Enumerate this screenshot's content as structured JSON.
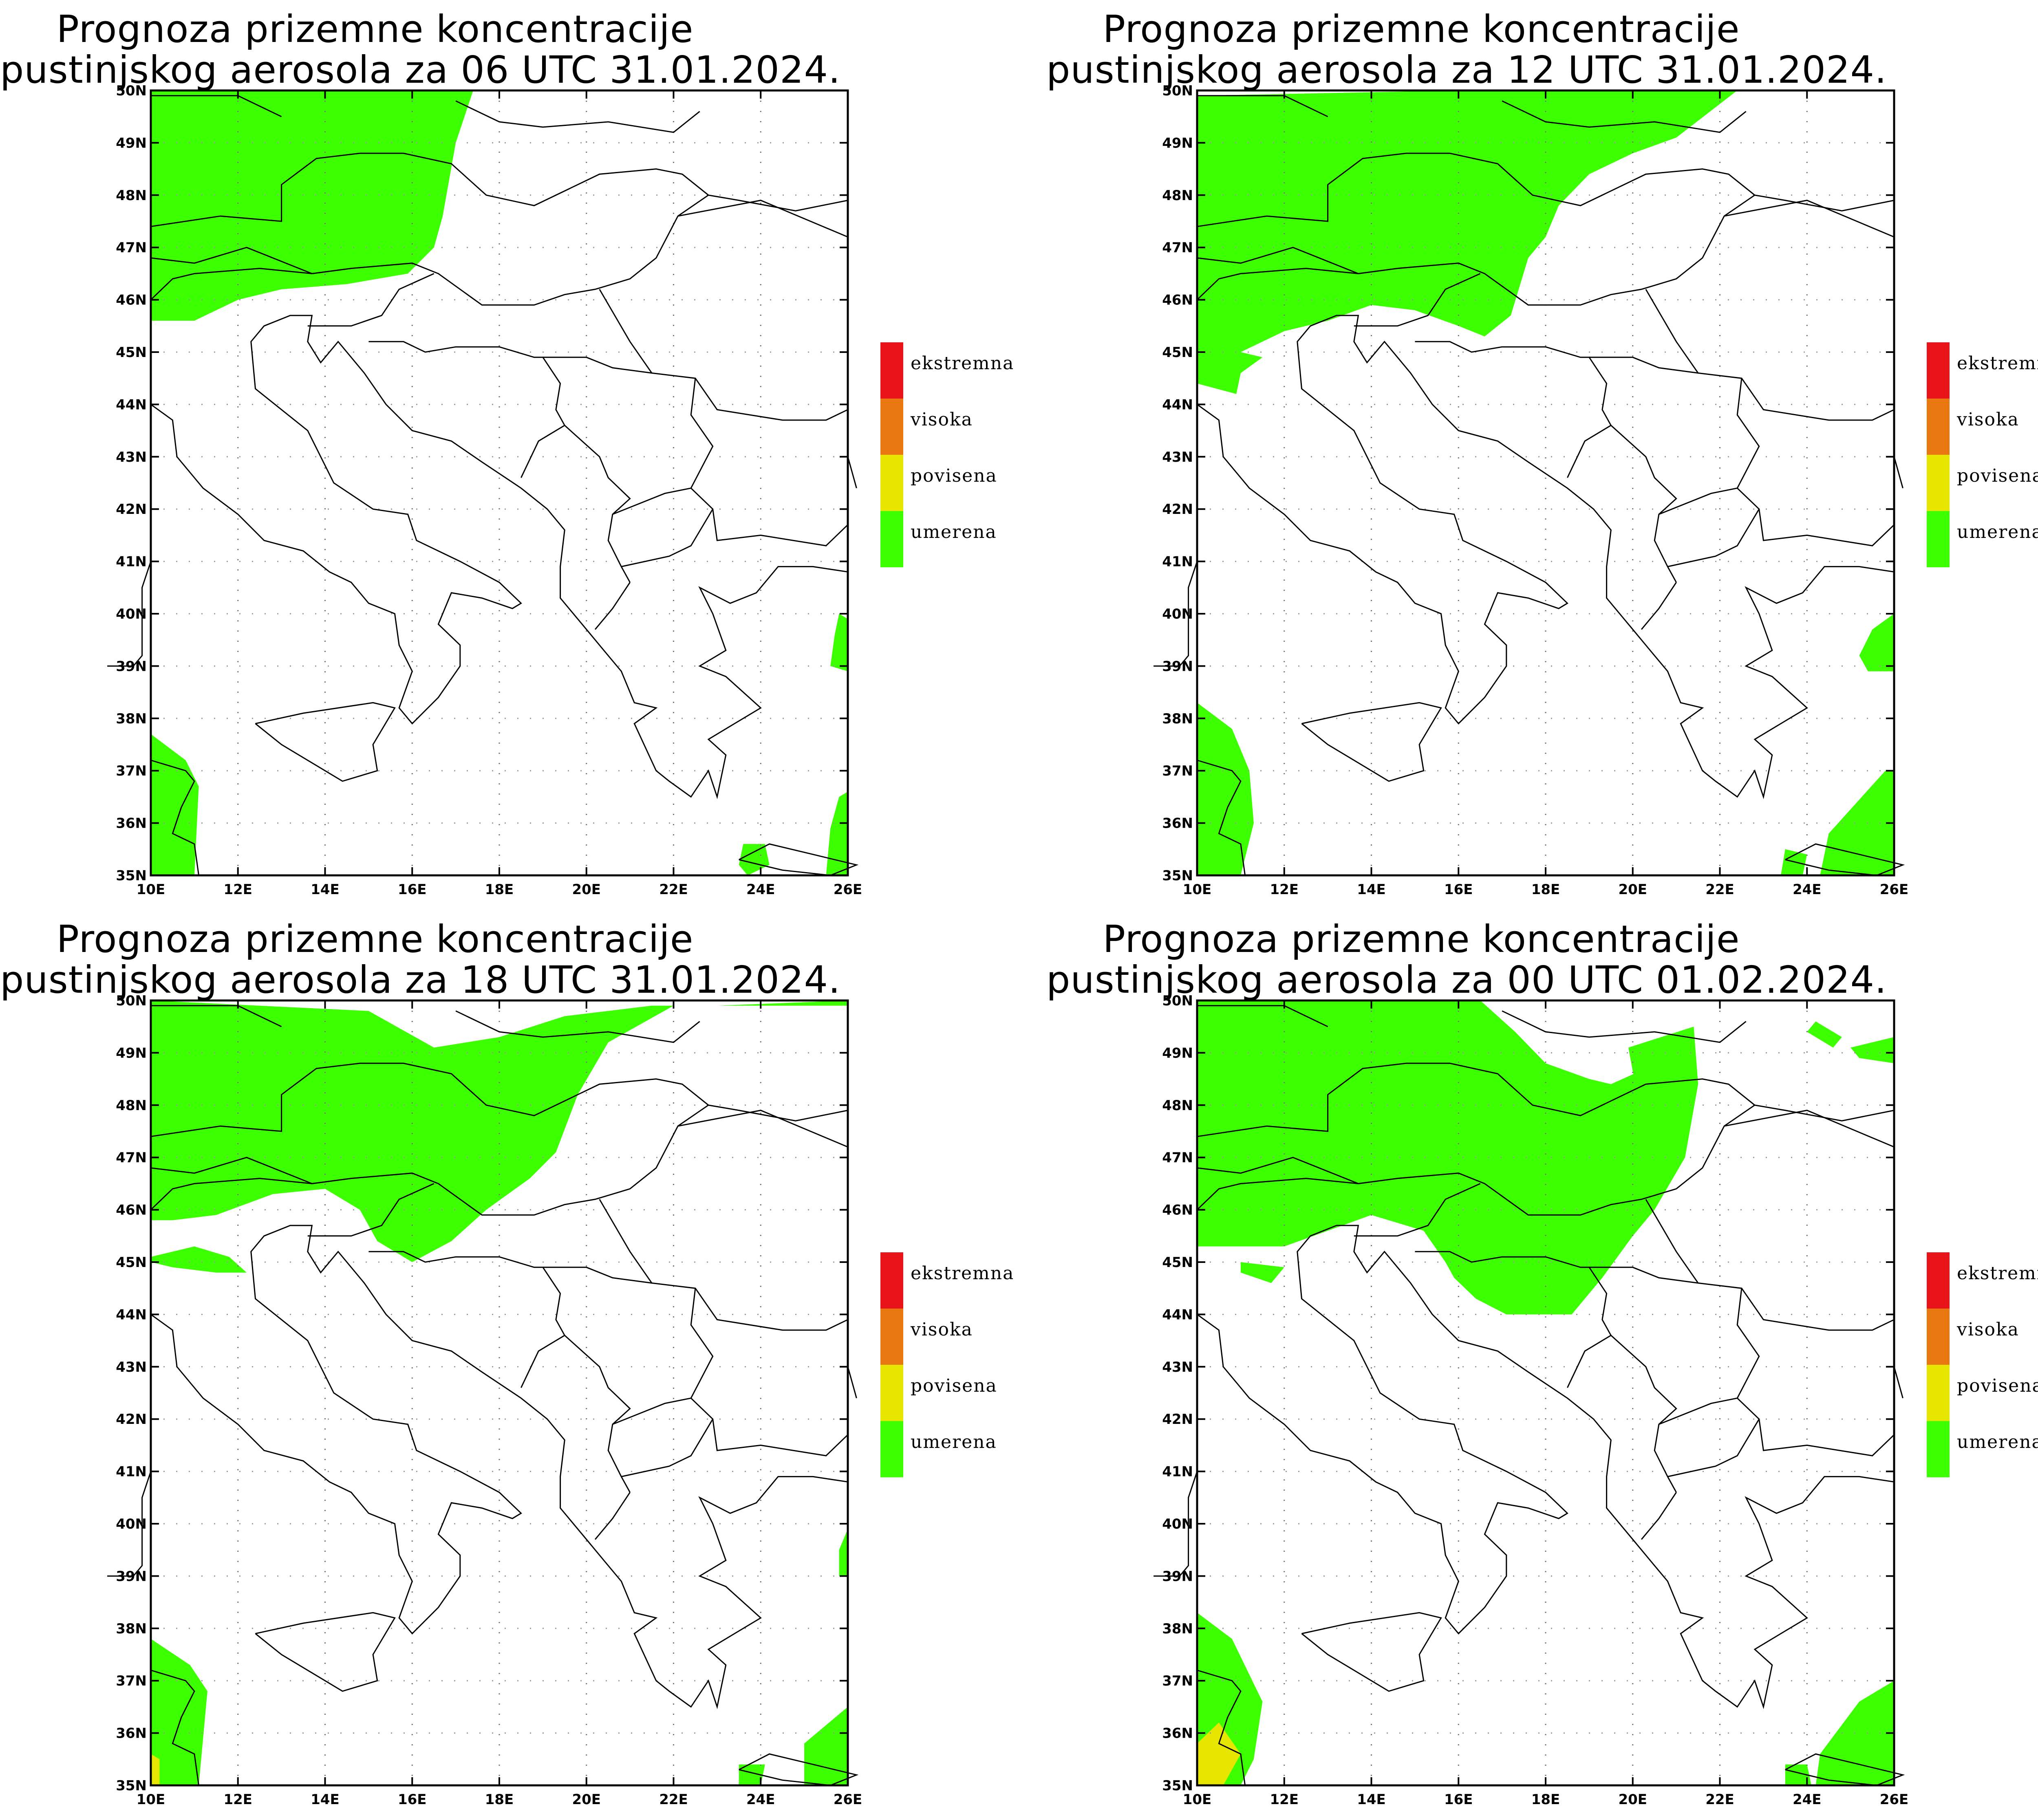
{
  "panels": [
    {
      "id": "p1",
      "title_line1": "Prognoza prizemne koncentracije",
      "title_line2": "pustinjskog aerosola za 06 UTC 31.01.2024."
    },
    {
      "id": "p2",
      "title_line1": "Prognoza prizemne koncentracije",
      "title_line2": "pustinjskog aerosola za 12 UTC 31.01.2024."
    },
    {
      "id": "p3",
      "title_line1": "Prognoza prizemne koncentracije",
      "title_line2": "pustinjskog aerosola za 18 UTC 31.01.2024."
    },
    {
      "id": "p4",
      "title_line1": "Prognoza prizemne koncentracije",
      "title_line2": "pustinjskog aerosola za 00 UTC 01.02.2024."
    }
  ],
  "legend": [
    {
      "label": "ekstremna",
      "color": "#e8141a"
    },
    {
      "label": "visoka",
      "color": "#e8780f"
    },
    {
      "label": "povisena",
      "color": "#e6e600"
    },
    {
      "label": "umerena",
      "color": "#3cff00"
    }
  ],
  "axes": {
    "lon_labels": [
      "10E",
      "12E",
      "14E",
      "16E",
      "18E",
      "20E",
      "22E",
      "24E",
      "26E"
    ],
    "lat_labels": [
      "35N",
      "36N",
      "37N",
      "38N",
      "39N",
      "40N",
      "41N",
      "42N",
      "43N",
      "44N",
      "45N",
      "46N",
      "47N",
      "48N",
      "49N",
      "50N"
    ]
  },
  "colors": {
    "fill_moderate": "#3cff00",
    "fill_elevated": "#e6e600"
  }
}
